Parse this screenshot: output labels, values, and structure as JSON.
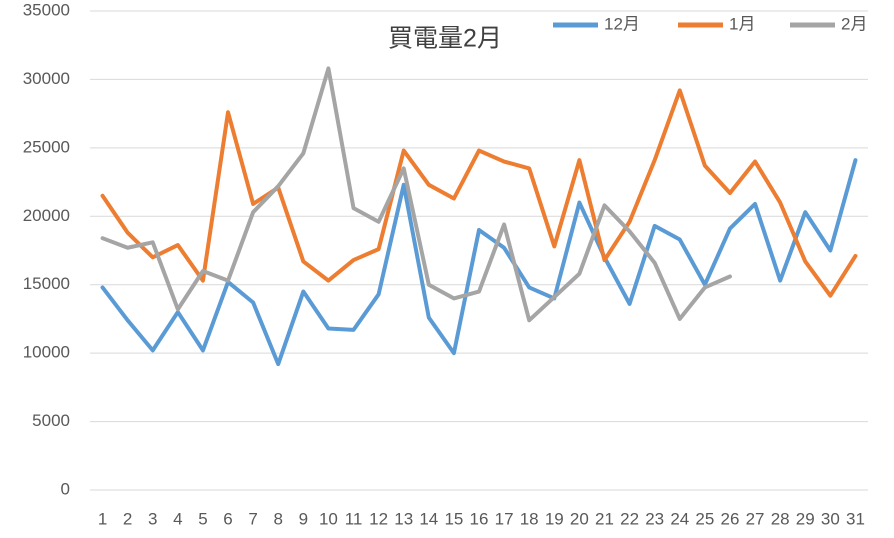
{
  "chart_data": {
    "type": "line",
    "title": "買電量2月",
    "categories": [
      "1",
      "2",
      "3",
      "4",
      "5",
      "6",
      "7",
      "8",
      "9",
      "10",
      "11",
      "12",
      "13",
      "14",
      "15",
      "16",
      "17",
      "18",
      "19",
      "20",
      "21",
      "22",
      "23",
      "24",
      "25",
      "26",
      "27",
      "28",
      "29",
      "30",
      "31"
    ],
    "series": [
      {
        "name": "12月",
        "color": "#5b9bd5",
        "values": [
          14800,
          12400,
          10200,
          13000,
          10200,
          15200,
          13700,
          9200,
          14500,
          11800,
          11700,
          14300,
          22300,
          12600,
          10000,
          19000,
          17700,
          14800,
          14000,
          21000,
          17000,
          13600,
          19300,
          18300,
          15000,
          19100,
          20900,
          15300,
          20300,
          17500,
          24100
        ]
      },
      {
        "name": "1月",
        "color": "#ed7d31",
        "values": [
          21500,
          18800,
          17000,
          17900,
          15300,
          27600,
          20900,
          22100,
          16700,
          15300,
          16800,
          17600,
          24800,
          22300,
          21300,
          24800,
          24000,
          23500,
          17800,
          24100,
          16800,
          19600,
          24100,
          29200,
          23700,
          21700,
          24000,
          21000,
          16700,
          14200,
          17100
        ]
      },
      {
        "name": "2月",
        "color": "#a5a5a5",
        "values": [
          18400,
          17700,
          18100,
          13200,
          16000,
          15300,
          20300,
          22200,
          24600,
          30800,
          20600,
          19600,
          23500,
          15000,
          14000,
          14500,
          19400,
          12400,
          14100,
          15800,
          20800,
          18900,
          16600,
          12500,
          14800,
          15600,
          null,
          null,
          null,
          null,
          null
        ]
      }
    ],
    "ylim": [
      0,
      35000
    ],
    "yticks": [
      0,
      5000,
      10000,
      15000,
      20000,
      25000,
      30000,
      35000
    ],
    "grid": true,
    "legend": "top-right"
  }
}
